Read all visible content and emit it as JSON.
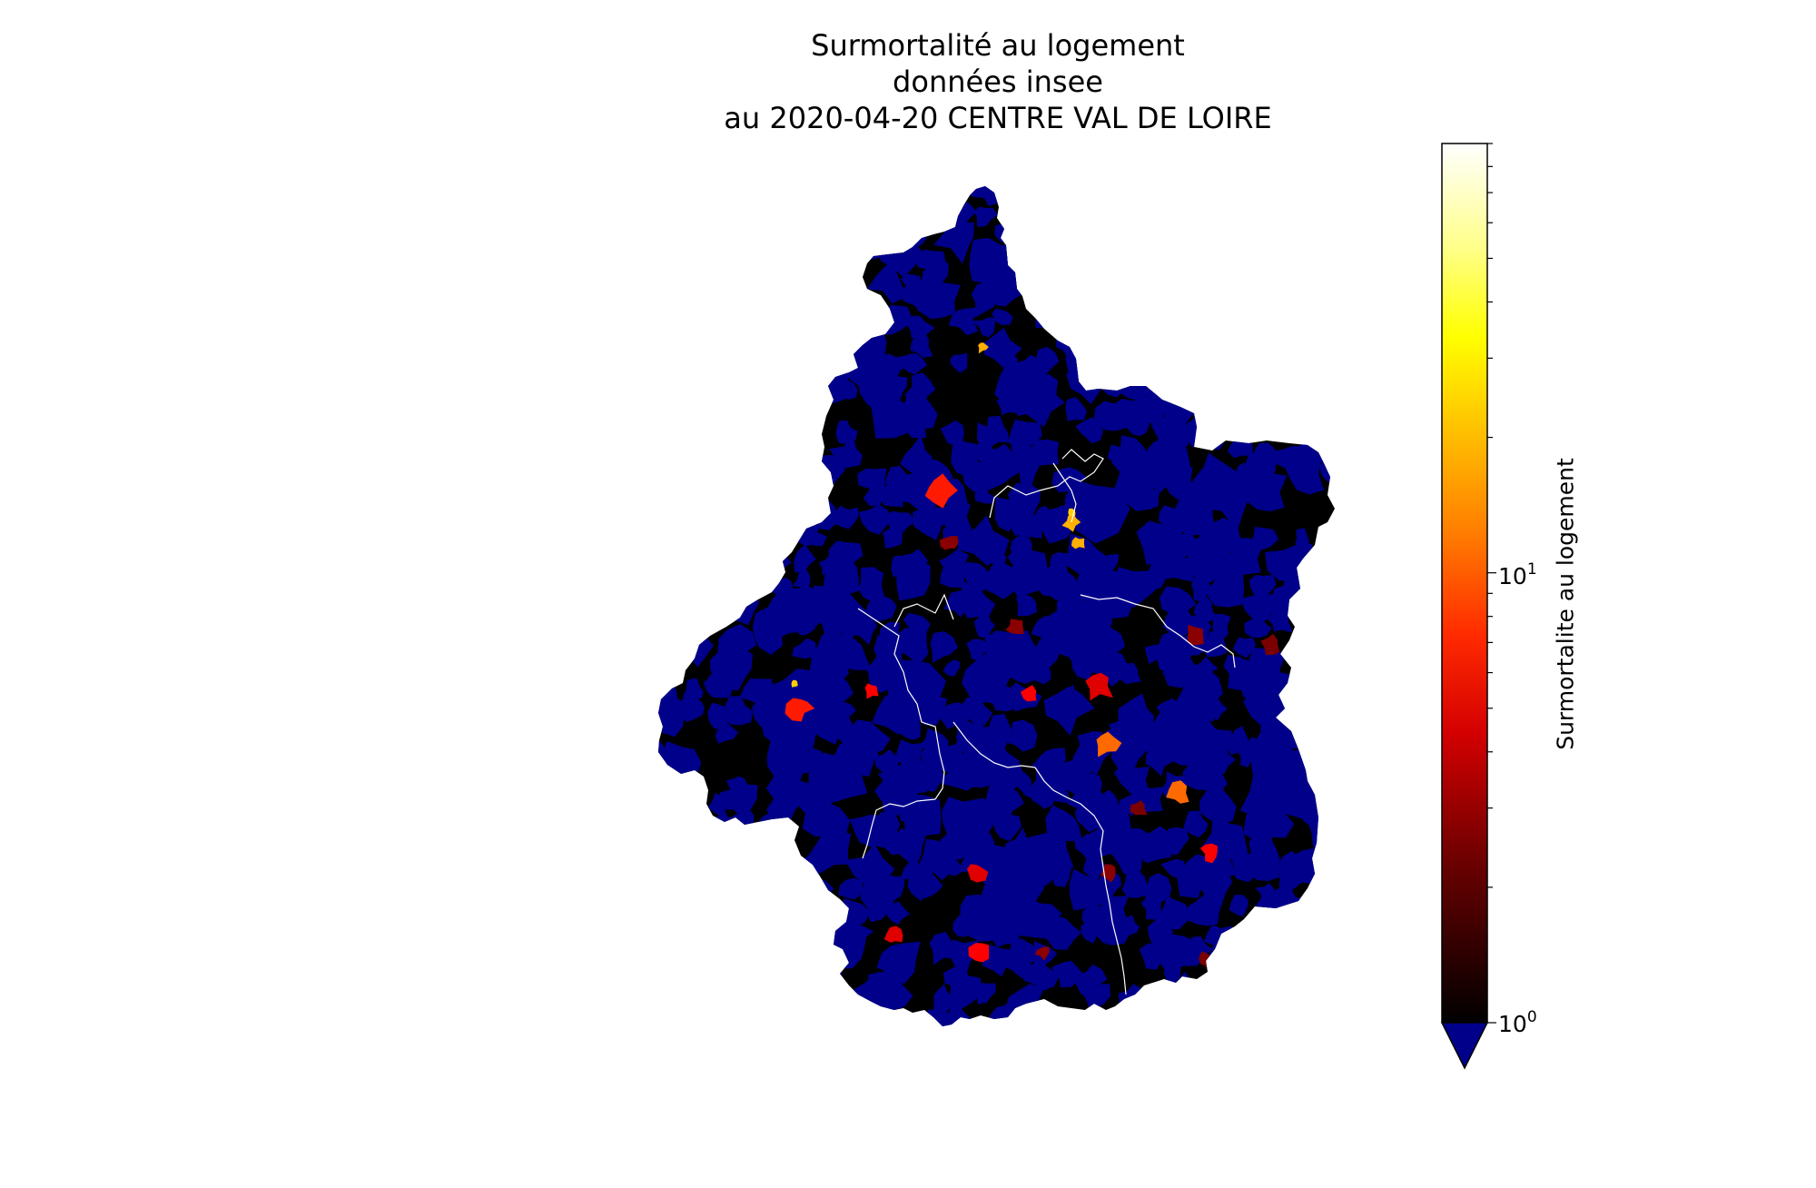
{
  "title": {
    "line1": "Surmortalité au logement",
    "line2": "données insee",
    "line3": "au 2020-04-20 CENTRE VAL DE LOIRE"
  },
  "colorbar": {
    "label": "Surmortalite au logement",
    "scale": "log",
    "ticks": [
      {
        "base": "10",
        "exp": "0",
        "value": 1
      },
      {
        "base": "10",
        "exp": "1",
        "value": 10
      }
    ],
    "under_color": "#00008b",
    "colormap": "hot",
    "colors": [
      "#000000",
      "#8b0000",
      "#ff0000",
      "#ff6a00",
      "#ffd700",
      "#ffff00",
      "#ffffff"
    ],
    "extend": "min"
  },
  "map": {
    "region": "CENTRE VAL DE LOIRE",
    "fill_below_1": "#00008b",
    "fill_base": "#000000",
    "border_color": "#ffffff",
    "hotspots": [
      {
        "color": "#ffb000",
        "value": 16
      },
      {
        "color": "#ff1a00",
        "value": 5
      },
      {
        "color": "#ffb000",
        "value": 16
      },
      {
        "color": "#ffb000",
        "value": 16
      },
      {
        "color": "#ff1a00",
        "value": 5
      },
      {
        "color": "#ff6a00",
        "value": 9
      },
      {
        "color": "#ff6a00",
        "value": 9
      },
      {
        "color": "#e00000",
        "value": 4
      },
      {
        "color": "#ff0000",
        "value": 5
      },
      {
        "color": "#ff0000",
        "value": 5
      },
      {
        "color": "#e00000",
        "value": 4
      },
      {
        "color": "#ff0000",
        "value": 5
      },
      {
        "color": "#8b0000",
        "value": 2
      },
      {
        "color": "#8b0000",
        "value": 2
      },
      {
        "color": "#8b0000",
        "value": 2
      },
      {
        "color": "#7a0000",
        "value": 2
      },
      {
        "color": "#8b0000",
        "value": 2
      },
      {
        "color": "#7a0000",
        "value": 2
      },
      {
        "color": "#8b0000",
        "value": 2
      },
      {
        "color": "#7a0000",
        "value": 2
      },
      {
        "color": "#ff0000",
        "value": 5
      },
      {
        "color": "#e00000",
        "value": 4
      }
    ]
  }
}
